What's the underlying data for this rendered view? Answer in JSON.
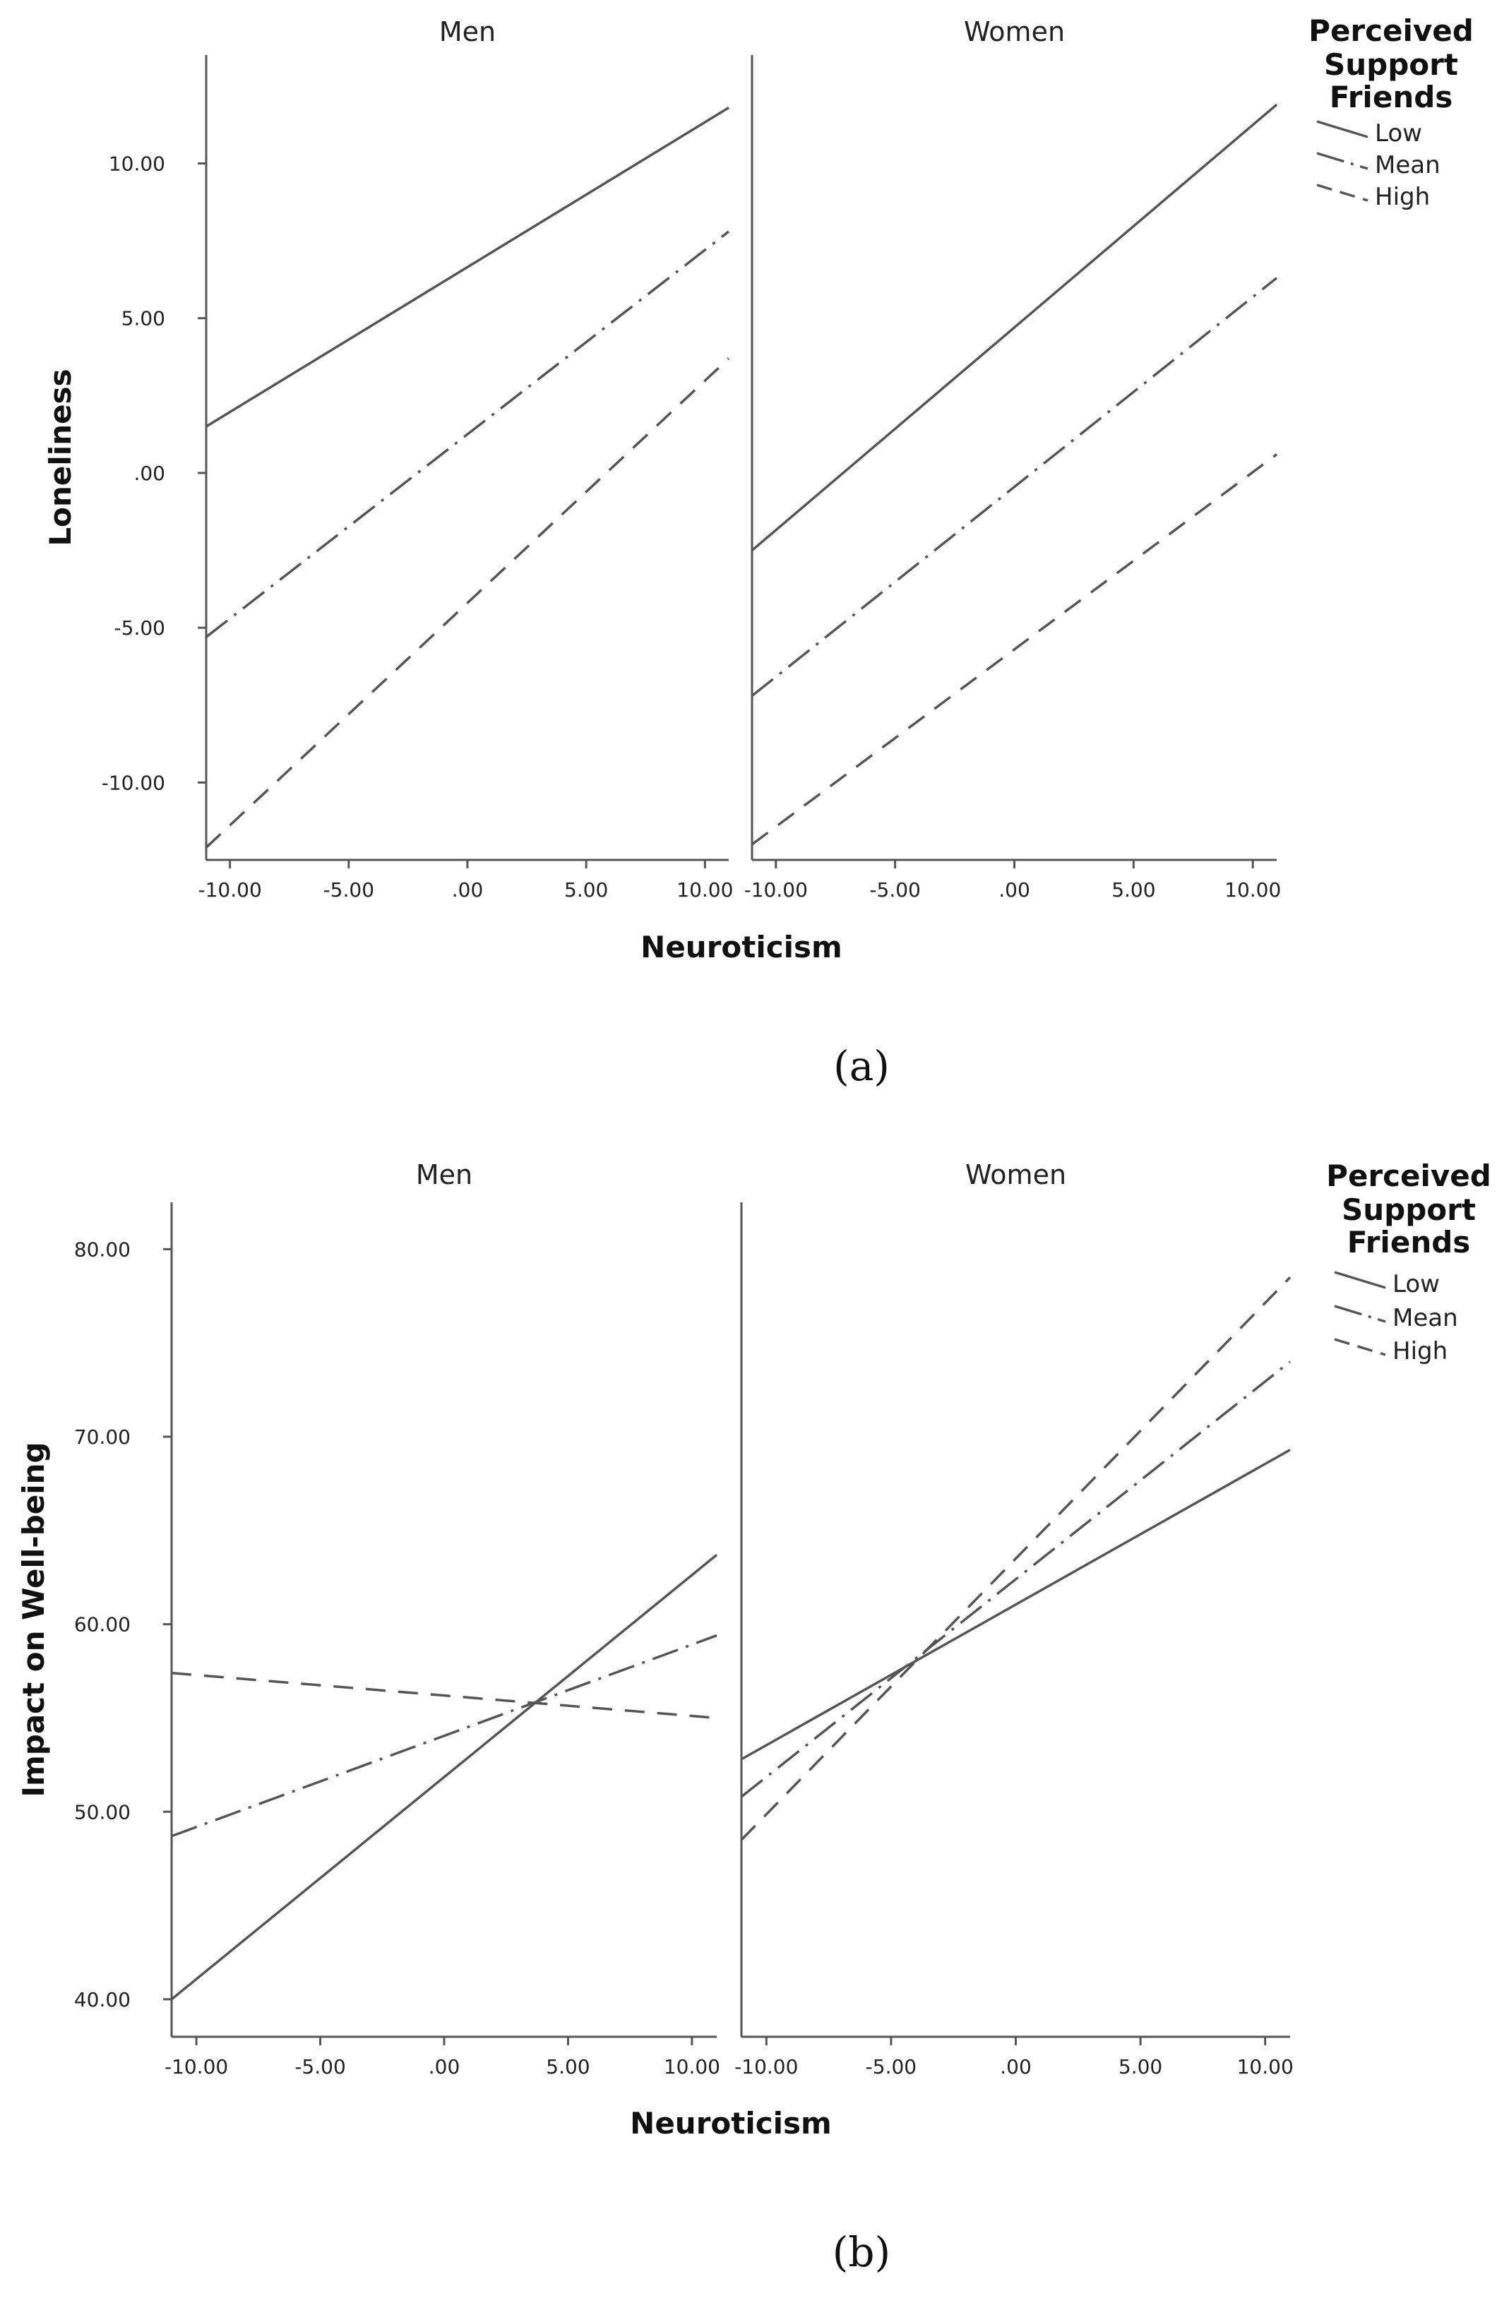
{
  "chart_data": [
    {
      "type": "line",
      "caption": "(a)",
      "ylabel": "Loneliness",
      "xlabel": "Neuroticism",
      "xlim": [
        -11,
        11
      ],
      "ylim": [
        -12.5,
        13.5
      ],
      "xticks": [
        -10,
        -5,
        0,
        5,
        10
      ],
      "xtick_labels": [
        "-10.00",
        "-5.00",
        ".00",
        "5.00",
        "10.00"
      ],
      "yticks": [
        -10,
        -5,
        0,
        5,
        10
      ],
      "ytick_labels": [
        "-10.00",
        "-5.00",
        ".00",
        "5.00",
        "10.00"
      ],
      "legend": {
        "title": [
          "Perceived",
          "Support",
          "Friends"
        ],
        "entries": [
          "Low",
          "Mean",
          "High"
        ]
      },
      "panels": [
        {
          "title": "Men",
          "x": [
            -11,
            11
          ],
          "series": [
            {
              "name": "Low",
              "style": "solid",
              "values": [
                1.5,
                11.8
              ]
            },
            {
              "name": "Mean",
              "style": "dashdot",
              "values": [
                -5.3,
                7.8
              ]
            },
            {
              "name": "High",
              "style": "dashed",
              "values": [
                -12.1,
                3.7
              ]
            }
          ]
        },
        {
          "title": "Women",
          "x": [
            -11,
            11
          ],
          "series": [
            {
              "name": "Low",
              "style": "solid",
              "values": [
                -2.5,
                11.9
              ]
            },
            {
              "name": "Mean",
              "style": "dashdot",
              "values": [
                -7.2,
                6.3
              ]
            },
            {
              "name": "High",
              "style": "dashed",
              "values": [
                -12.0,
                0.6
              ]
            }
          ]
        }
      ]
    },
    {
      "type": "line",
      "caption": "(b)",
      "ylabel": "Impact on Well-being",
      "xlabel": "Neuroticism",
      "xlim": [
        -11,
        11
      ],
      "ylim": [
        38,
        82.5
      ],
      "xticks": [
        -10,
        -5,
        0,
        5,
        10
      ],
      "xtick_labels": [
        "-10.00",
        "-5.00",
        ".00",
        "5.00",
        "10.00"
      ],
      "yticks": [
        40,
        50,
        60,
        70,
        80
      ],
      "ytick_labels": [
        "40.00",
        "50.00",
        "60.00",
        "70.00",
        "80.00"
      ],
      "legend": {
        "title": [
          "Perceived",
          "Support",
          "Friends"
        ],
        "entries": [
          "Low",
          "Mean",
          "High"
        ]
      },
      "panels": [
        {
          "title": "Men",
          "x": [
            -11,
            11
          ],
          "series": [
            {
              "name": "Low",
              "style": "solid",
              "values": [
                40.0,
                63.7
              ]
            },
            {
              "name": "Mean",
              "style": "dashdot",
              "values": [
                48.7,
                59.4
              ]
            },
            {
              "name": "High",
              "style": "dashed",
              "values": [
                57.4,
                55.0
              ]
            }
          ]
        },
        {
          "title": "Women",
          "x": [
            -11,
            11
          ],
          "series": [
            {
              "name": "Low",
              "style": "solid",
              "values": [
                52.8,
                69.3
              ]
            },
            {
              "name": "Mean",
              "style": "dashdot",
              "values": [
                50.8,
                74.0
              ]
            },
            {
              "name": "High",
              "style": "dashed",
              "values": [
                48.5,
                78.5
              ]
            }
          ]
        }
      ]
    }
  ]
}
